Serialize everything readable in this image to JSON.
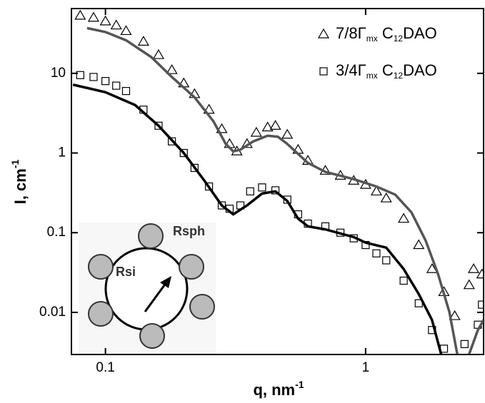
{
  "chart_data": {
    "type": "scatter",
    "xscale": "log",
    "yscale": "log",
    "xlim": [
      0.074,
      2.84
    ],
    "ylim": [
      0.00296,
      65
    ],
    "xticks": [
      0.1,
      1
    ],
    "yticks": [
      0.01,
      0.1,
      1,
      10
    ],
    "xlabel": [
      {
        "text": "q, nm"
      },
      {
        "text": "-1",
        "sup": true
      }
    ],
    "ylabel": [
      {
        "text": "I, cm"
      },
      {
        "text": "-1",
        "sup": true
      }
    ],
    "legend": "upper right",
    "series": [
      {
        "name": [
          {
            "text": "7/8Γ"
          },
          {
            "text": "mx",
            "sub": true
          },
          {
            "text": " C"
          },
          {
            "text": "12",
            "sub": true
          },
          {
            "text": "DAO"
          }
        ],
        "style": "marker",
        "marker": "triangle",
        "color": "#000000",
        "x": [
          0.08,
          0.09,
          0.1,
          0.11,
          0.12,
          0.14,
          0.16,
          0.18,
          0.2,
          0.22,
          0.25,
          0.28,
          0.3,
          0.32,
          0.35,
          0.38,
          0.42,
          0.45,
          0.5,
          0.55,
          0.6,
          0.7,
          0.8,
          0.9,
          1.0,
          1.1,
          1.2,
          1.4,
          1.6,
          1.8,
          2.0,
          2.2,
          2.5,
          2.6,
          2.8
        ],
        "values": [
          53,
          50,
          45,
          40,
          34,
          25,
          17,
          11,
          7.5,
          5.5,
          3.5,
          2.0,
          1.3,
          1.05,
          1.3,
          1.8,
          2.1,
          2.2,
          1.7,
          1.1,
          0.8,
          0.6,
          0.52,
          0.45,
          0.4,
          0.33,
          0.27,
          0.15,
          0.07,
          0.035,
          0.018,
          0.009,
          0.022,
          0.035,
          0.03
        ]
      },
      {
        "name": [
          {
            "text": "3/4Γ"
          },
          {
            "text": "mx",
            "sub": true
          },
          {
            "text": " C"
          },
          {
            "text": "12",
            "sub": true
          },
          {
            "text": "DAO"
          }
        ],
        "style": "marker",
        "marker": "square",
        "color": "#000000",
        "x": [
          0.08,
          0.09,
          0.1,
          0.11,
          0.12,
          0.14,
          0.16,
          0.18,
          0.2,
          0.22,
          0.25,
          0.28,
          0.3,
          0.33,
          0.36,
          0.4,
          0.45,
          0.5,
          0.55,
          0.6,
          0.7,
          0.8,
          0.9,
          1.0,
          1.1,
          1.2,
          1.4,
          1.6,
          1.8,
          2.0,
          2.4,
          2.7,
          2.8
        ],
        "values": [
          9.5,
          9,
          8,
          7,
          6.0,
          3.5,
          2.2,
          1.4,
          1.0,
          0.65,
          0.38,
          0.22,
          0.2,
          0.22,
          0.33,
          0.37,
          0.34,
          0.26,
          0.17,
          0.13,
          0.12,
          0.1,
          0.085,
          0.07,
          0.055,
          0.045,
          0.025,
          0.013,
          0.006,
          0.0035,
          0.004,
          0.007,
          0.0125
        ]
      },
      {
        "style": "line",
        "color": "#555555",
        "x": [
          0.085,
          0.1,
          0.12,
          0.15,
          0.18,
          0.22,
          0.26,
          0.29,
          0.31,
          0.33,
          0.37,
          0.42,
          0.46,
          0.5,
          0.6,
          0.7,
          0.9,
          1.1,
          1.3,
          1.5,
          1.7,
          1.9,
          2.1,
          2.25,
          2.4,
          2.5,
          2.7,
          2.84
        ],
        "values": [
          37,
          33,
          26,
          16,
          9,
          5,
          2.5,
          1.3,
          1.05,
          1.1,
          1.4,
          1.65,
          1.6,
          1.3,
          0.75,
          0.58,
          0.47,
          0.38,
          0.3,
          0.18,
          0.08,
          0.03,
          0.01,
          0.003,
          null,
          0.003,
          0.006,
          0.008
        ]
      },
      {
        "style": "line",
        "color": "#000000",
        "x": [
          0.075,
          0.1,
          0.13,
          0.16,
          0.2,
          0.24,
          0.28,
          0.31,
          0.35,
          0.4,
          0.45,
          0.5,
          0.55,
          0.6,
          0.7,
          0.9,
          1.0,
          1.2,
          1.4,
          1.6,
          1.8,
          1.95
        ],
        "values": [
          7.2,
          5.8,
          4,
          2.2,
          1.0,
          0.45,
          0.22,
          0.17,
          0.22,
          0.31,
          0.33,
          0.25,
          0.15,
          0.12,
          0.11,
          0.088,
          0.075,
          0.065,
          0.035,
          0.017,
          0.008,
          0.003
        ]
      }
    ],
    "inset": {
      "labels": [
        "Rsph",
        "Rsi"
      ]
    }
  }
}
